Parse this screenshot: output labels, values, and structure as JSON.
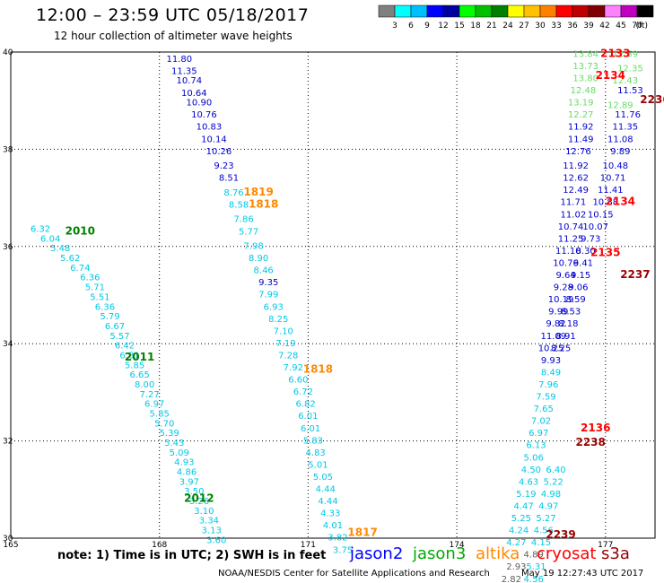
{
  "header": {
    "title": "12:00 – 23:59 UTC 05/18/2017",
    "subtitle": "12 hour collection of altimeter wave heights"
  },
  "footer": {
    "note": "note:  1) Time is in UTC;  2) SWH is in feet",
    "credit": "NOAA/NESDIS Center for Satellite Applications and Research",
    "timestamp": "May 19 12:27:43 UTC 2017"
  },
  "legend": [
    {
      "name": "jason2",
      "color": "#0000ff"
    },
    {
      "name": "jason3",
      "color": "#00aa00"
    },
    {
      "name": "altika",
      "color": "#ff8800"
    },
    {
      "name": "cryosat",
      "color": "#ff0000"
    },
    {
      "name": "s3a",
      "color": "#990000"
    }
  ],
  "color_scale": {
    "unit": "(ft)",
    "colors": [
      "#808080",
      "#00ffff",
      "#00bfff",
      "#0000ff",
      "#0000a0",
      "#00ff00",
      "#00c000",
      "#008000",
      "#ffff00",
      "#ffc000",
      "#ff8000",
      "#ff0000",
      "#c00000",
      "#800000",
      "#ff80ff",
      "#c000c0",
      "#000000"
    ],
    "labels": [
      "3",
      "6",
      "9",
      "12",
      "15",
      "18",
      "21",
      "24",
      "27",
      "30",
      "33",
      "36",
      "39",
      "42",
      "45",
      "70"
    ]
  },
  "chart_data": {
    "type": "scatter",
    "xlim": [
      165,
      178
    ],
    "ylim": [
      30,
      40
    ],
    "x_ticks": [
      165,
      168,
      171,
      174,
      177
    ],
    "y_ticks": [
      30,
      32,
      34,
      36,
      38,
      40
    ],
    "grid": true,
    "time_labels": [
      {
        "text": "2010",
        "x": 166.4,
        "y": 36.25,
        "color": "#008000"
      },
      {
        "text": "2011",
        "x": 167.6,
        "y": 33.65,
        "color": "#008000"
      },
      {
        "text": "2012",
        "x": 168.8,
        "y": 30.75,
        "color": "#008000"
      },
      {
        "text": "1819",
        "x": 170.0,
        "y": 37.05,
        "color": "#ff8800"
      },
      {
        "text": "1818",
        "x": 170.1,
        "y": 36.8,
        "color": "#ff8800"
      },
      {
        "text": "1818",
        "x": 171.2,
        "y": 33.4,
        "color": "#ff8800"
      },
      {
        "text": "1817",
        "x": 172.1,
        "y": 30.05,
        "color": "#ff8800"
      },
      {
        "text": "2133",
        "x": 177.2,
        "y": 39.9,
        "color": "#ff0000"
      },
      {
        "text": "2134",
        "x": 177.1,
        "y": 39.45,
        "color": "#ff0000"
      },
      {
        "text": "2236",
        "x": 178.0,
        "y": 38.95,
        "color": "#990000"
      },
      {
        "text": "2134",
        "x": 177.3,
        "y": 36.85,
        "color": "#ff0000"
      },
      {
        "text": "2135",
        "x": 177.0,
        "y": 35.8,
        "color": "#ff0000"
      },
      {
        "text": "2237",
        "x": 177.6,
        "y": 35.35,
        "color": "#990000"
      },
      {
        "text": "2136",
        "x": 176.8,
        "y": 32.2,
        "color": "#ff0000"
      },
      {
        "text": "2238",
        "x": 176.7,
        "y": 31.9,
        "color": "#990000"
      },
      {
        "text": "2239",
        "x": 176.1,
        "y": 30.0,
        "color": "#990000"
      }
    ],
    "series": [
      {
        "name": "jason3",
        "color": "#00c8e6",
        "points": [
          [
            165.6,
            36.3,
            "6.32"
          ],
          [
            165.8,
            36.1,
            "6.04"
          ],
          [
            166.0,
            35.9,
            "5.48"
          ],
          [
            166.2,
            35.7,
            "5.62"
          ],
          [
            166.4,
            35.5,
            "6.74"
          ],
          [
            166.6,
            35.3,
            "6.36"
          ],
          [
            166.7,
            35.1,
            "5.71"
          ],
          [
            166.8,
            34.9,
            "5.51"
          ],
          [
            166.9,
            34.7,
            "6.36"
          ],
          [
            167.0,
            34.5,
            "5.79"
          ],
          [
            167.1,
            34.3,
            "6.67"
          ],
          [
            167.2,
            34.1,
            "5.57"
          ],
          [
            167.3,
            33.9,
            "6.42"
          ],
          [
            167.4,
            33.7,
            "6.81"
          ],
          [
            167.5,
            33.5,
            "5.85"
          ],
          [
            167.6,
            33.3,
            "6.65"
          ],
          [
            167.7,
            33.1,
            "8.00"
          ],
          [
            167.8,
            32.9,
            "7.27"
          ],
          [
            167.9,
            32.7,
            "6.97"
          ],
          [
            168.0,
            32.5,
            "5.85"
          ],
          [
            168.1,
            32.3,
            "5.70"
          ],
          [
            168.2,
            32.1,
            "5.39"
          ],
          [
            168.3,
            31.9,
            "5.43"
          ],
          [
            168.4,
            31.7,
            "5.09"
          ],
          [
            168.5,
            31.5,
            "4.93"
          ],
          [
            168.55,
            31.3,
            "4.86"
          ],
          [
            168.6,
            31.1,
            "3.97"
          ],
          [
            168.7,
            30.9,
            "3.50"
          ],
          [
            168.8,
            30.7,
            "3.26"
          ],
          [
            168.9,
            30.5,
            "3.10"
          ],
          [
            169.0,
            30.3,
            "3.34"
          ],
          [
            169.05,
            30.1,
            "3.13"
          ],
          [
            169.15,
            29.9,
            "3.60"
          ]
        ]
      },
      {
        "name": "jason2",
        "color": "#0000cc",
        "points": [
          [
            168.4,
            39.8,
            "11.80"
          ],
          [
            168.5,
            39.55,
            "11.35"
          ],
          [
            168.6,
            39.35,
            "10.74"
          ],
          [
            168.7,
            39.1,
            "10.64"
          ],
          [
            168.8,
            38.9,
            "10.90"
          ],
          [
            168.9,
            38.65,
            "10.76"
          ],
          [
            169.0,
            38.4,
            "10.83"
          ],
          [
            169.1,
            38.15,
            "10.14"
          ],
          [
            169.2,
            37.9,
            "10.26"
          ],
          [
            169.3,
            37.6,
            "9.23"
          ],
          [
            169.4,
            37.35,
            "8.51"
          ]
        ]
      },
      {
        "name": "jason3b",
        "color": "#00c8e6",
        "points": [
          [
            169.5,
            37.05,
            "8.76"
          ],
          [
            169.6,
            36.8,
            "8.58"
          ],
          [
            169.7,
            36.5,
            "7.86"
          ],
          [
            169.8,
            36.25,
            "5.77"
          ],
          [
            169.9,
            35.95,
            "7.98"
          ],
          [
            170.0,
            35.7,
            "8.90"
          ],
          [
            170.1,
            35.45,
            "8.46"
          ]
        ]
      },
      {
        "name": "jason2b",
        "color": "#0000cc",
        "points": [
          [
            170.2,
            35.2,
            "9.35"
          ]
        ]
      },
      {
        "name": "jason3c",
        "color": "#00c8e6",
        "points": [
          [
            170.2,
            34.95,
            "7.99"
          ],
          [
            170.3,
            34.7,
            "6.93"
          ],
          [
            170.4,
            34.45,
            "8.25"
          ],
          [
            170.5,
            34.2,
            "7.10"
          ],
          [
            170.55,
            33.95,
            "7.19"
          ],
          [
            170.6,
            33.7,
            "7.28"
          ],
          [
            170.7,
            33.45,
            "7.92"
          ],
          [
            170.8,
            33.2,
            "6.60"
          ],
          [
            170.9,
            32.95,
            "6.72"
          ],
          [
            170.95,
            32.7,
            "6.82"
          ],
          [
            171.0,
            32.45,
            "6.01"
          ],
          [
            171.05,
            32.2,
            "6.01"
          ],
          [
            171.1,
            31.95,
            "5.83"
          ],
          [
            171.15,
            31.7,
            "4.83"
          ],
          [
            171.2,
            31.45,
            "5.01"
          ],
          [
            171.3,
            31.2,
            "5.05"
          ],
          [
            171.35,
            30.95,
            "4.44"
          ],
          [
            171.4,
            30.7,
            "4.44"
          ],
          [
            171.45,
            30.45,
            "4.33"
          ],
          [
            171.5,
            30.2,
            "4.01"
          ],
          [
            171.6,
            29.95,
            "3.82"
          ],
          [
            171.7,
            29.7,
            "3.75"
          ]
        ]
      },
      {
        "name": "jason3d",
        "color": "#66dd66",
        "points": [
          [
            176.6,
            39.9,
            "13.84"
          ],
          [
            176.6,
            39.65,
            "13.73"
          ],
          [
            176.6,
            39.4,
            "13.80"
          ],
          [
            176.55,
            39.15,
            "12.48"
          ],
          [
            176.5,
            38.9,
            "13.19"
          ],
          [
            176.5,
            38.65,
            "12.27"
          ]
        ]
      },
      {
        "name": "jason3e",
        "color": "#66dd66",
        "points": [
          [
            177.4,
            39.9,
            "12.59"
          ],
          [
            177.5,
            39.6,
            "12.35"
          ],
          [
            177.4,
            39.35,
            "12.43"
          ],
          [
            177.3,
            38.85,
            "12.89"
          ]
        ]
      },
      {
        "name": "jason2c",
        "color": "#0000cc",
        "points": [
          [
            176.5,
            38.4,
            "11.92"
          ],
          [
            176.5,
            38.15,
            "11.49"
          ],
          [
            176.45,
            37.9,
            "12.76"
          ],
          [
            176.4,
            37.6,
            "11.92"
          ],
          [
            176.4,
            37.35,
            "12.62"
          ],
          [
            176.4,
            37.1,
            "12.49"
          ],
          [
            176.35,
            36.85,
            "11.71"
          ],
          [
            176.35,
            36.6,
            "11.02"
          ],
          [
            176.3,
            36.35,
            "10.74"
          ],
          [
            176.3,
            36.1,
            "11.25"
          ],
          [
            176.25,
            35.85,
            "11.10"
          ],
          [
            176.2,
            35.6,
            "10.76"
          ],
          [
            176.2,
            35.35,
            "9.64"
          ],
          [
            176.15,
            35.1,
            "9.28"
          ],
          [
            176.1,
            34.85,
            "10.19"
          ],
          [
            176.05,
            34.6,
            "9.99"
          ],
          [
            176.0,
            34.35,
            "9.82"
          ],
          [
            175.95,
            34.1,
            "11.09"
          ],
          [
            175.9,
            33.85,
            "10.25"
          ],
          [
            175.9,
            33.6,
            "9.93"
          ]
        ]
      },
      {
        "name": "jason2d",
        "color": "#0000cc",
        "points": [
          [
            177.5,
            39.15,
            "11.53"
          ],
          [
            177.45,
            38.65,
            "11.76"
          ],
          [
            177.4,
            38.4,
            "11.35"
          ],
          [
            177.3,
            38.15,
            "11.08"
          ],
          [
            177.3,
            37.9,
            "9.89"
          ],
          [
            177.2,
            37.6,
            "10.48"
          ],
          [
            177.15,
            37.35,
            "10.71"
          ],
          [
            177.1,
            37.1,
            "11.41"
          ],
          [
            177.0,
            36.85,
            "10.88"
          ],
          [
            176.9,
            36.6,
            "10.15"
          ],
          [
            176.8,
            36.35,
            "10.07"
          ],
          [
            176.7,
            36.1,
            "9.73"
          ],
          [
            176.6,
            35.85,
            "8.30"
          ],
          [
            176.55,
            35.6,
            "9.41"
          ],
          [
            176.5,
            35.35,
            "9.15"
          ],
          [
            176.45,
            35.1,
            "9.06"
          ],
          [
            176.4,
            34.85,
            "8.59"
          ],
          [
            176.3,
            34.6,
            "8.53"
          ],
          [
            176.25,
            34.35,
            "8.18"
          ],
          [
            176.2,
            34.1,
            "8.91"
          ],
          [
            176.1,
            33.85,
            "8.25"
          ]
        ]
      },
      {
        "name": "jason3f",
        "color": "#00c8e6",
        "points": [
          [
            175.9,
            33.35,
            "8.49"
          ],
          [
            175.85,
            33.1,
            "7.96"
          ],
          [
            175.8,
            32.85,
            "7.59"
          ],
          [
            175.75,
            32.6,
            "7.65"
          ],
          [
            175.7,
            32.35,
            "7.02"
          ],
          [
            175.65,
            32.1,
            "6.97"
          ],
          [
            175.6,
            31.85,
            "6.13"
          ],
          [
            175.55,
            31.6,
            "5.06"
          ],
          [
            175.5,
            31.35,
            "4.50"
          ],
          [
            175.45,
            31.1,
            "4.63"
          ],
          [
            175.4,
            30.85,
            "5.19"
          ],
          [
            175.35,
            30.6,
            "4.47"
          ],
          [
            175.3,
            30.35,
            "5.25"
          ],
          [
            175.25,
            30.1,
            "4.24"
          ],
          [
            175.2,
            29.85,
            "4.27"
          ]
        ]
      },
      {
        "name": "jason3g",
        "color": "#00c8e6",
        "points": [
          [
            176.0,
            31.35,
            "6.40"
          ],
          [
            175.95,
            31.1,
            "5.22"
          ],
          [
            175.9,
            30.85,
            "4.98"
          ],
          [
            175.85,
            30.6,
            "4.97"
          ],
          [
            175.8,
            30.35,
            "5.27"
          ],
          [
            175.75,
            30.1,
            "4.56"
          ],
          [
            175.7,
            29.85,
            "4.15"
          ]
        ]
      },
      {
        "name": "gray",
        "color": "#606060",
        "points": [
          [
            175.55,
            29.6,
            "4.89"
          ],
          [
            175.2,
            29.35,
            "2.93"
          ],
          [
            175.1,
            29.1,
            "2.82"
          ]
        ]
      },
      {
        "name": "jason3h",
        "color": "#00c8e6",
        "points": [
          [
            175.6,
            29.35,
            "5.31"
          ],
          [
            175.55,
            29.1,
            "4.56"
          ]
        ]
      }
    ]
  }
}
